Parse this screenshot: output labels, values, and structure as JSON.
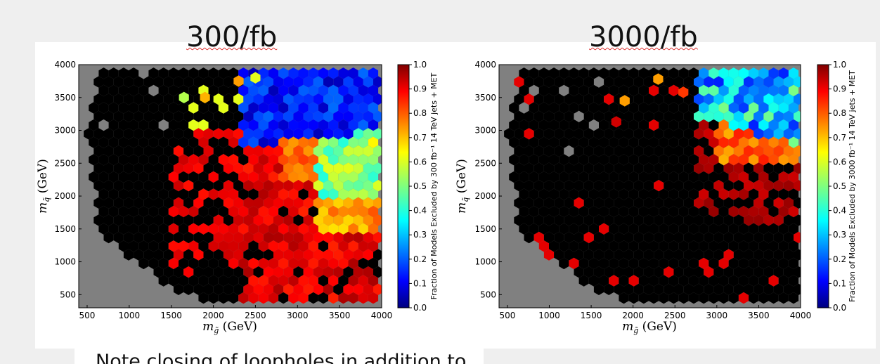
{
  "slide": {
    "title_left": "300/fb",
    "title_right": "3000/fb",
    "caption": "Note closing of loopholes in addition to"
  },
  "colors": {
    "background_gray": "#808080",
    "excluded_all": "#000000"
  },
  "chart_data": [
    {
      "type": "heatmap",
      "subtype": "hexbin",
      "title": "300/fb",
      "xlabel": "m_g̃ (GeV)",
      "ylabel": "m_q̃ (GeV)",
      "xlim": [
        400,
        4000
      ],
      "ylim": [
        300,
        4000
      ],
      "xticks": [
        500,
        1000,
        1500,
        2000,
        2500,
        3000,
        3500,
        4000
      ],
      "yticks": [
        500,
        1000,
        1500,
        2000,
        2500,
        3000,
        3500,
        4000
      ],
      "colorbar": {
        "label": "Fraction of Models Excluded by 300 fb⁻¹ 14 TeV jets + MET",
        "range": [
          0.0,
          1.0
        ],
        "ticks": [
          0.0,
          0.1,
          0.2,
          0.3,
          0.4,
          0.5,
          0.6,
          0.7,
          0.8,
          0.9,
          1.0
        ],
        "colormap": "jet"
      },
      "grid": false,
      "regions": [
        {
          "description": "no models (gray)",
          "value": null
        },
        {
          "description": "m_gluino < 1500 GeV, fully excluded",
          "value": 1.0
        },
        {
          "description": "m_gluino 1500-2500, m_squark < 3000",
          "value": 0.88
        },
        {
          "description": "m_gluino 2500-3200, m_squark 1000-2000",
          "value": 0.9
        },
        {
          "description": "m_gluino 3200-4000, m_squark 1500-2000",
          "value": 0.7
        },
        {
          "description": "m_gluino 3300-4000, m_squark 2000-2600",
          "value": 0.5
        },
        {
          "description": "m_gluino 2800-4000, m_squark 2800-4000",
          "value": 0.12
        }
      ],
      "highlighted_bins": [
        {
          "x": 1650,
          "y": 3500,
          "value": 0.55
        },
        {
          "x": 1900,
          "y": 3500,
          "value": 0.7
        },
        {
          "x": 2300,
          "y": 3750,
          "value": 0.72
        },
        {
          "x": 2500,
          "y": 3800,
          "value": 0.6
        }
      ]
    },
    {
      "type": "heatmap",
      "subtype": "hexbin",
      "title": "3000/fb",
      "xlabel": "m_g̃ (GeV)",
      "ylabel": "m_q̃ (GeV)",
      "xlim": [
        400,
        4000
      ],
      "ylim": [
        300,
        4000
      ],
      "xticks": [
        500,
        1000,
        1500,
        2000,
        2500,
        3000,
        3500,
        4000
      ],
      "yticks": [
        500,
        1000,
        1500,
        2000,
        2500,
        3000,
        3500,
        4000
      ],
      "colorbar": {
        "label": "Fraction of Models Excluded by 3000 fb⁻¹ 14 TeV jets + MET",
        "range": [
          0.0,
          1.0
        ],
        "ticks": [
          0.0,
          0.1,
          0.2,
          0.3,
          0.4,
          0.5,
          0.6,
          0.7,
          0.8,
          0.9,
          1.0
        ],
        "colormap": "jet"
      },
      "grid": false,
      "regions": [
        {
          "description": "no models (gray)",
          "value": null
        },
        {
          "description": "most of plane fully excluded",
          "value": 1.0
        },
        {
          "description": "m_gluino 2800-4000, m_squark 1700-2500",
          "value": 0.9
        },
        {
          "description": "m_gluino 3000-4000, m_squark 2500-3000",
          "value": 0.75
        },
        {
          "description": "m_gluino 3000-4000, m_squark 3000-3900",
          "value": 0.3
        }
      ],
      "highlighted_bins": [
        {
          "x": 1900,
          "y": 3450,
          "value": 0.72
        },
        {
          "x": 2300,
          "y": 3780,
          "value": 0.72
        },
        {
          "x": 1800,
          "y": 3130,
          "value": 0.92
        },
        {
          "x": 2600,
          "y": 3580,
          "value": 0.82
        }
      ]
    }
  ]
}
